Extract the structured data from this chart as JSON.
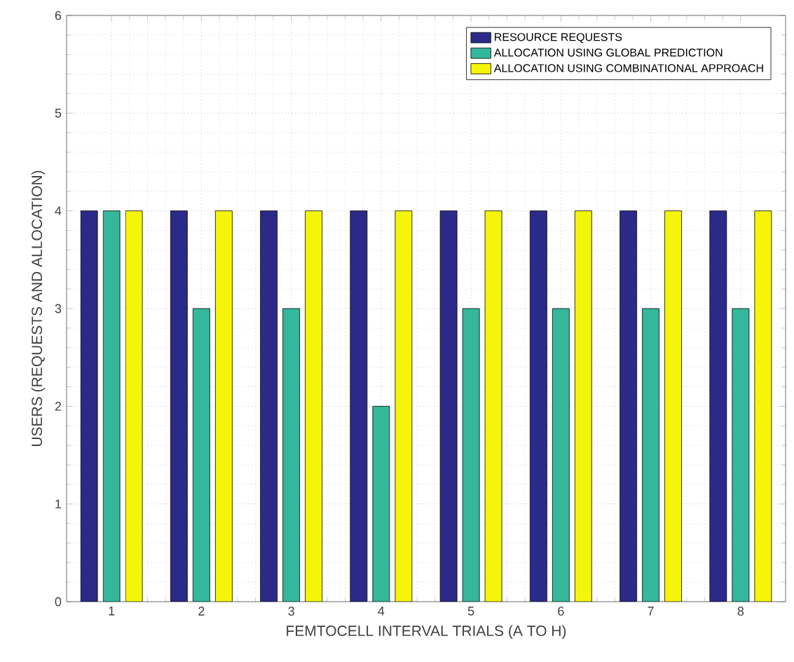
{
  "chart_data": {
    "type": "bar",
    "xlabel": "FEMTOCELL INTERVAL TRIALS (A TO H)",
    "ylabel": "USERS (REQUESTS AND ALLOCATION)",
    "categories": [
      "1",
      "2",
      "3",
      "4",
      "5",
      "6",
      "7",
      "8"
    ],
    "series": [
      {
        "name": "RESOURCE REQUESTS",
        "color": "#2c2a88",
        "values": [
          4,
          4,
          4,
          4,
          4,
          4,
          4,
          4
        ]
      },
      {
        "name": "ALLOCATION USING GLOBAL PREDICTION",
        "color": "#35b79b",
        "values": [
          4,
          3,
          3,
          2,
          3,
          3,
          3,
          3
        ]
      },
      {
        "name": "ALLOCATION USING COMBINATIONAL APPROACH",
        "color": "#f5f50a",
        "values": [
          4,
          4,
          4,
          4,
          4,
          4,
          4,
          4
        ]
      }
    ],
    "ylim": [
      0,
      6
    ],
    "yticks": [
      0,
      1,
      2,
      3,
      4,
      5,
      6
    ],
    "grid": true,
    "legend": "top right"
  }
}
